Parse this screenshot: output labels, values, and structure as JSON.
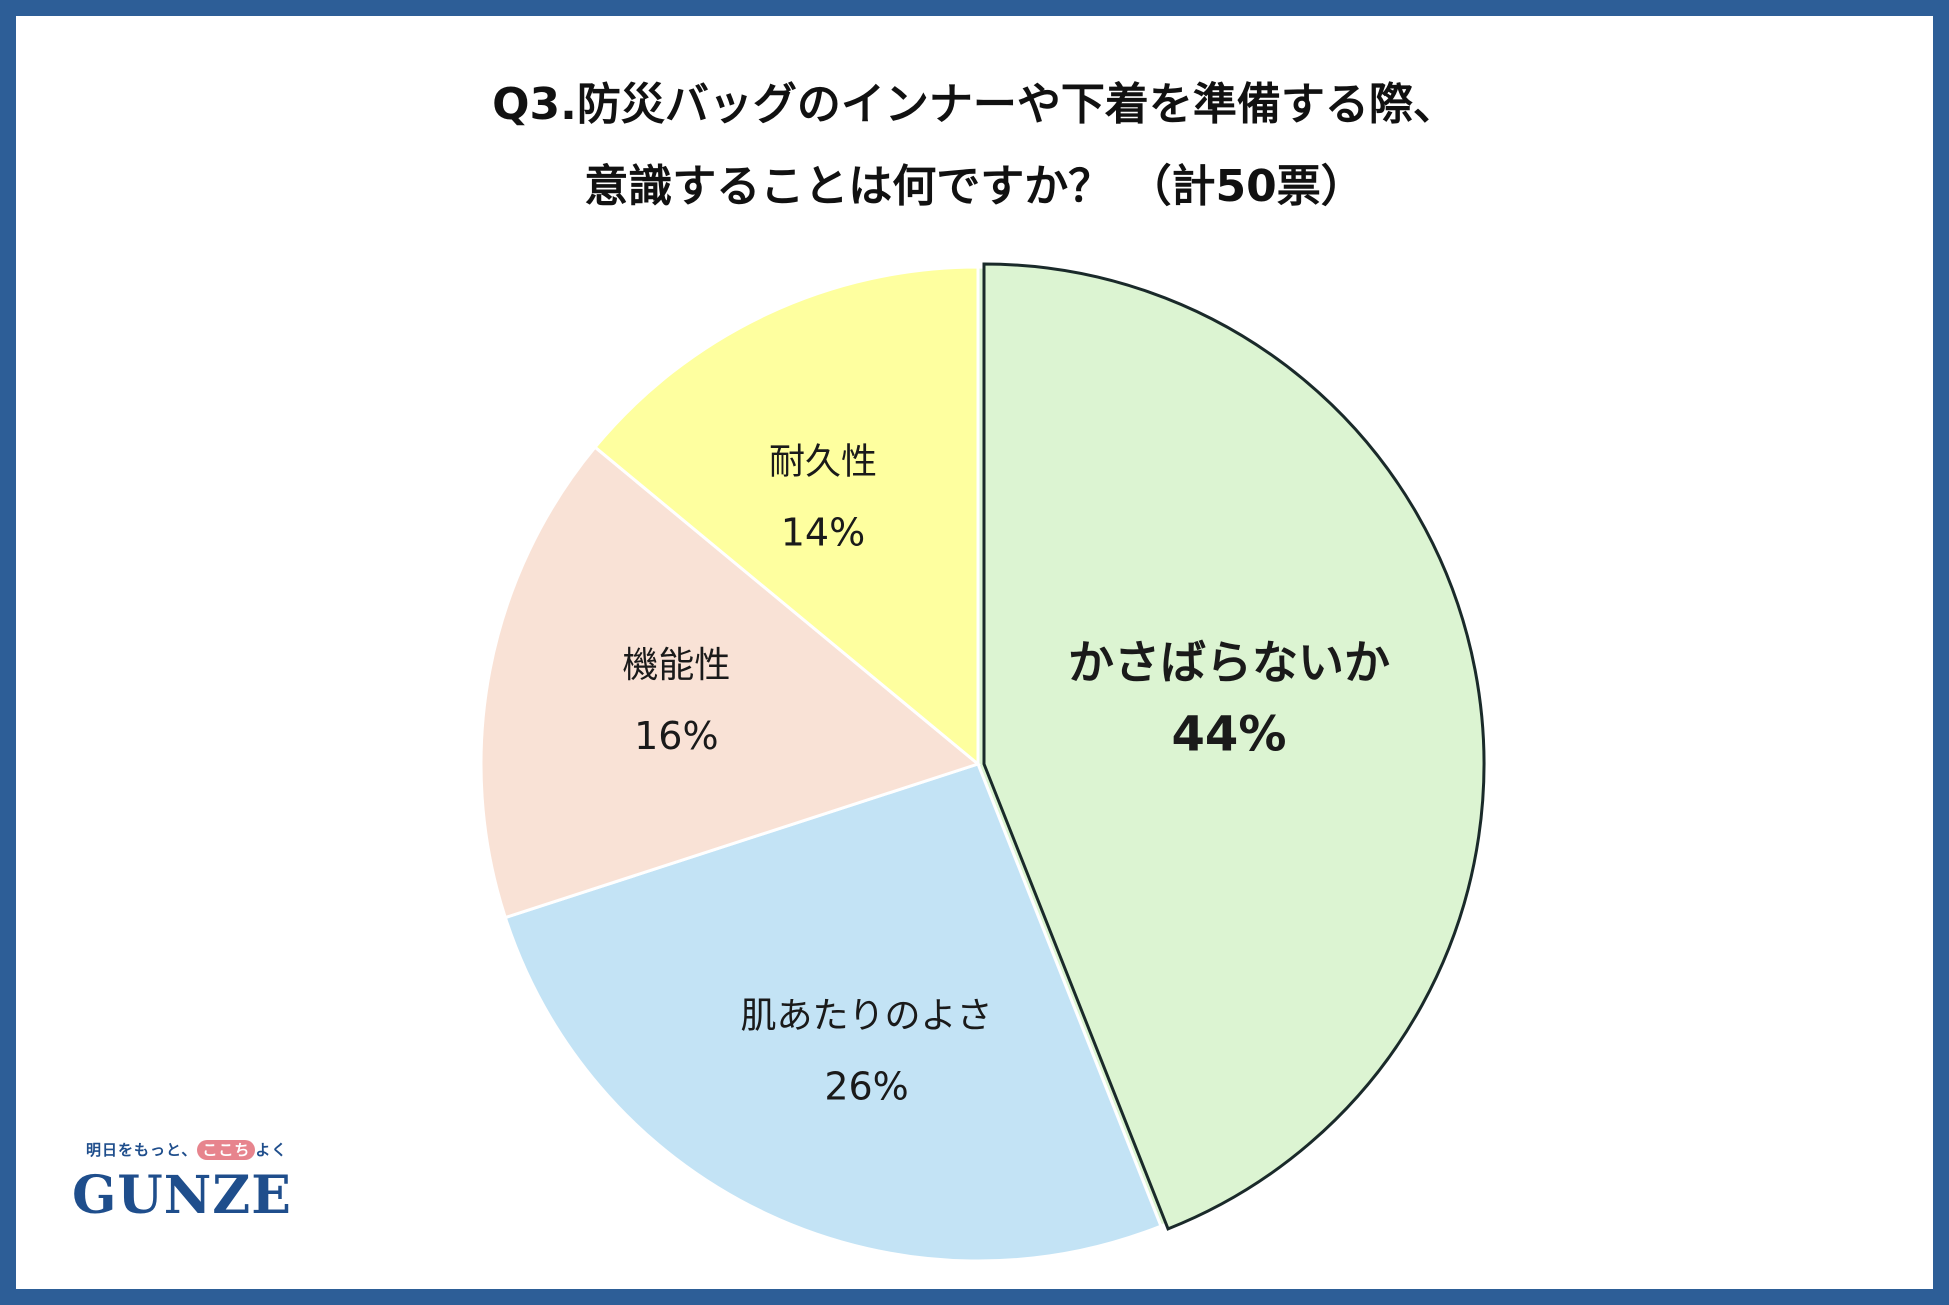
{
  "title_line1": "Q3.防災バッグのインナーや下着を準備する際、",
  "title_line2": "意識することは何ですか？ （計50票）",
  "logo": {
    "tagline_pre": "明日をもっと、",
    "tagline_mid": "ここち",
    "tagline_post": "よく",
    "brand": "GUNZE"
  },
  "colors": {
    "border": "#2d5e97",
    "brand": "#1f4e8c"
  },
  "chart_data": {
    "type": "pie",
    "unit": "%",
    "total_votes": 50,
    "start": "12 o'clock, clockwise",
    "slices": [
      {
        "label": "かさばらないか",
        "value": 44,
        "display": "44%",
        "color": "#dcf4d2",
        "highlight": true
      },
      {
        "label": "肌あたりのよさ",
        "value": 26,
        "display": "26%",
        "color": "#c3e3f5",
        "highlight": false
      },
      {
        "label": "機能性",
        "value": 16,
        "display": "16%",
        "color": "#f9e2d6",
        "highlight": false
      },
      {
        "label": "耐久性",
        "value": 14,
        "display": "14%",
        "color": "#feff9f",
        "highlight": false
      }
    ]
  }
}
